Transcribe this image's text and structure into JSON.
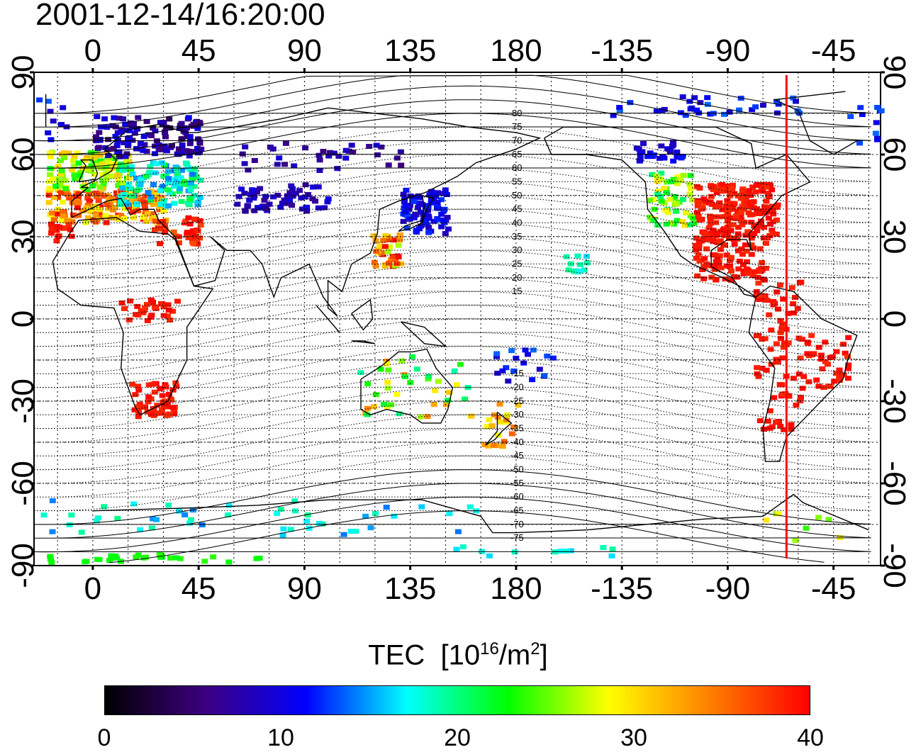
{
  "title": "2001-12-14/16:20:00",
  "map": {
    "x_ticks": [
      "0",
      "45",
      "90",
      "135",
      "180",
      "-135",
      "-90",
      "-45"
    ],
    "y_ticks": [
      "90",
      "60",
      "30",
      "0",
      "-30",
      "-60",
      "-90"
    ],
    "contour_labels_north": [
      "80",
      "75",
      "70",
      "65",
      "60",
      "55",
      "50",
      "45",
      "40",
      "35",
      "30",
      "25",
      "20",
      "15"
    ],
    "contour_labels_south": [
      "-15",
      "-20",
      "-25",
      "-30",
      "-35",
      "-40",
      "-45",
      "-50",
      "-55",
      "-60",
      "-65",
      "-70",
      "-75"
    ],
    "terminator_longitude": -65,
    "terminator_color": "#ff0000"
  },
  "colorbar": {
    "title": "TEC",
    "unit_prefix": "[10",
    "unit_exp": "16",
    "unit_mid": "/m",
    "unit_exp2": "2",
    "unit_suffix": "]",
    "ticks": [
      "0",
      "10",
      "20",
      "30",
      "40"
    ],
    "range": [
      0,
      40
    ],
    "colors": [
      "#000000",
      "#3c0080",
      "#0000ff",
      "#00ffff",
      "#00ff00",
      "#ffff00",
      "#ff8000",
      "#ff0000"
    ]
  }
}
